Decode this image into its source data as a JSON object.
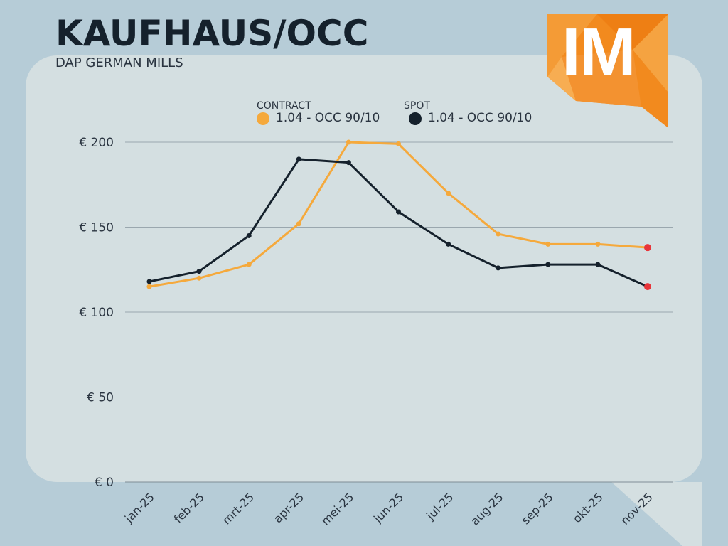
{
  "header": {
    "title": "KAUFHAUS/OCC",
    "subtitle": "DAP GERMAN MILLS",
    "logo_text": "IM"
  },
  "legend": [
    {
      "group": "CONTRACT",
      "label": "1.04 - OCC 90/10",
      "color": "#f5a93c"
    },
    {
      "group": "SPOT",
      "label": "1.04 - OCC 90/10",
      "color": "#15212c"
    }
  ],
  "colors": {
    "background": "#b6ccd7",
    "panel": "#d4dfe1",
    "grid": "#9aa7ae",
    "contract": "#f5a93c",
    "spot": "#15212c",
    "last_point": "#e8353a",
    "logo_orange": "#f28a1e"
  },
  "chart_data": {
    "type": "line",
    "categories": [
      "jan-25",
      "feb-25",
      "mrt-25",
      "apr-25",
      "mei-25",
      "jun-25",
      "jul-25",
      "aug-25",
      "sep-25",
      "okt-25",
      "nov-25"
    ],
    "series": [
      {
        "name": "1.04 - OCC 90/10",
        "values": [
          115,
          120,
          128,
          152,
          200,
          199,
          170,
          146,
          140,
          140,
          138
        ]
      },
      {
        "name": "1.04 - OCC 90/10",
        "values": [
          118,
          124,
          145,
          190,
          188,
          159,
          140,
          126,
          128,
          128,
          115
        ]
      }
    ],
    "yticks": [
      "€ 0",
      "€ 50",
      "€ 100",
      "€ 150",
      "€ 200"
    ],
    "ylim": [
      0,
      200
    ],
    "grid": true,
    "legend_position": "top"
  }
}
